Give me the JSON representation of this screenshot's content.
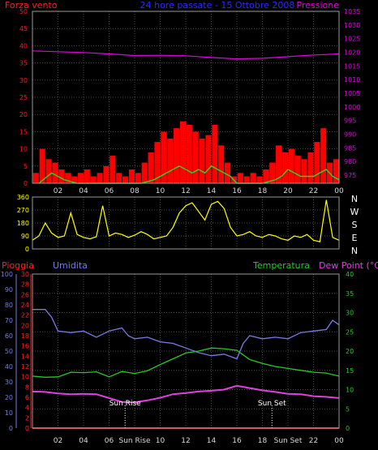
{
  "colors": {
    "background": "#000000",
    "grid": "#4a4a4a",
    "frame": "#9a9a9a",
    "axis_time": "#d8d8d8",
    "wind_speed": "#ff1a1a",
    "wind_gust": "#ff0000",
    "wind_mean_green": "#22dd22",
    "wind_mean_white": "#ffffff",
    "pressure": "#e000e0",
    "direction": "#ffff00",
    "rain": "#ff2020",
    "humidity": "#7a7ae8",
    "temperature": "#22cc22",
    "dewpoint": "#e040e0",
    "title": "#2a2aff",
    "compass": "#ffffff"
  },
  "chart_data": [
    {
      "type": "bar",
      "title": "24 hore passate - 15 Ottobre 2008",
      "left_label": "Forza vento",
      "right_label": "Pressione",
      "x_ticks": [
        "02",
        "04",
        "06",
        "08",
        "10",
        "12",
        "14",
        "16",
        "18",
        "20",
        "22",
        "00"
      ],
      "y_left": {
        "ticks": [
          0,
          5,
          10,
          15,
          20,
          25,
          30,
          35,
          40,
          45,
          50
        ],
        "range": [
          0,
          50
        ]
      },
      "y_right": {
        "ticks": [
          975,
          980,
          985,
          990,
          995,
          1000,
          1005,
          1010,
          1015,
          1020,
          1025,
          1030,
          1035
        ],
        "range": [
          972,
          1035
        ]
      },
      "series": [
        {
          "kind": "wind_gust",
          "x": [
            0.5,
            1.0,
            1.5,
            2.0,
            2.5,
            3.0,
            3.5,
            4.0,
            4.5,
            5.0,
            5.5,
            6.0,
            6.5,
            7.0,
            7.5,
            8.0,
            8.5,
            9.0,
            9.5,
            10.0,
            10.5,
            11.0,
            11.5,
            12.0,
            12.5,
            13.0,
            13.5,
            14.0,
            14.5,
            15.0,
            15.5,
            16.0,
            16.5,
            17.0,
            17.5,
            18.0,
            18.5,
            19.0,
            19.5,
            20.0,
            20.5,
            21.0,
            21.5,
            22.0,
            22.5,
            23.0,
            23.5,
            24.0
          ],
          "values": [
            3,
            10,
            7,
            6,
            4,
            3,
            2,
            3,
            4,
            2,
            3,
            5,
            8,
            3,
            2,
            4,
            3,
            6,
            9,
            12,
            15,
            13,
            16,
            18,
            17,
            15,
            13,
            14,
            17,
            11,
            6,
            2,
            3,
            2,
            3,
            2,
            4,
            6,
            11,
            9,
            10,
            8,
            7,
            9,
            12,
            16,
            6,
            7
          ]
        },
        {
          "kind": "wind_mean",
          "x": [
            0.5,
            1.5,
            2.5,
            3.5,
            4.5,
            5.5,
            6.5,
            7.5,
            8.5,
            9.5,
            10.5,
            11.0,
            11.5,
            12.0,
            12.5,
            13.0,
            13.5,
            14.0,
            14.5,
            15.0,
            15.5,
            16.0,
            17.0,
            18.0,
            19.0,
            19.5,
            20.0,
            20.5,
            21.0,
            21.5,
            22.0,
            22.5,
            23.0,
            23.5,
            24.0
          ],
          "values": [
            0,
            3,
            1,
            0,
            0,
            0,
            0,
            0,
            0,
            1,
            3,
            4,
            5,
            4,
            3,
            4,
            3,
            5,
            4,
            3,
            2,
            0,
            0,
            0,
            1,
            2,
            4,
            3,
            2,
            2,
            2,
            3,
            4,
            2,
            1
          ]
        },
        {
          "kind": "pressure",
          "x": [
            0,
            2,
            4,
            6,
            8,
            10,
            12,
            14,
            16,
            18,
            20,
            22,
            24
          ],
          "values": [
            1020.5,
            1020.2,
            1019.9,
            1019.4,
            1018.8,
            1018.9,
            1018.7,
            1018.1,
            1017.6,
            1017.8,
            1018.4,
            1019.0,
            1019.4
          ]
        }
      ]
    },
    {
      "type": "line",
      "title": "",
      "x_ticks": [
        "02",
        "04",
        "06",
        "08",
        "10",
        "12",
        "14",
        "16",
        "18",
        "20",
        "22",
        "00"
      ],
      "y_left": {
        "ticks": [
          0,
          90,
          180,
          270,
          360
        ],
        "range": [
          0,
          360
        ]
      },
      "compass_labels": [
        "N",
        "W",
        "S",
        "E",
        "N"
      ],
      "series": [
        {
          "kind": "direction",
          "x": [
            0,
            0.5,
            1,
            1.5,
            2,
            2.5,
            3,
            3.5,
            4,
            4.5,
            5,
            5.5,
            6,
            6.5,
            7,
            7.5,
            8,
            8.5,
            9,
            9.5,
            10,
            10.5,
            11,
            11.5,
            12,
            12.5,
            13,
            13.5,
            14,
            14.5,
            15,
            15.5,
            16,
            16.5,
            17,
            17.5,
            18,
            18.5,
            19,
            19.5,
            20,
            20.5,
            21,
            21.5,
            22,
            22.5,
            23,
            23.5,
            24
          ],
          "values": [
            60,
            90,
            180,
            110,
            80,
            90,
            250,
            100,
            80,
            70,
            85,
            300,
            90,
            110,
            100,
            80,
            95,
            120,
            100,
            70,
            80,
            90,
            150,
            250,
            300,
            320,
            260,
            200,
            310,
            330,
            280,
            150,
            90,
            100,
            120,
            90,
            80,
            100,
            90,
            70,
            60,
            90,
            80,
            100,
            60,
            50,
            340,
            80,
            60
          ]
        }
      ]
    },
    {
      "type": "line",
      "title": "",
      "left_labels": [
        "Pioggia",
        "Umidita"
      ],
      "right_labels": [
        "Temperatura",
        "Dew Point (°C)"
      ],
      "x_ticks": [
        "02",
        "04",
        "06",
        "Sun Rise",
        "10",
        "12",
        "14",
        "16",
        "18",
        "Sun Set",
        "22",
        "00"
      ],
      "y_humidity": {
        "ticks": [
          0,
          10,
          20,
          30,
          40,
          50,
          60,
          70,
          80,
          90,
          100
        ],
        "range": [
          0,
          100
        ]
      },
      "y_rain": {
        "ticks": [
          0,
          2,
          4,
          6,
          8,
          10,
          12,
          14,
          16,
          18,
          20,
          22,
          24,
          26,
          28,
          30
        ],
        "range": [
          0,
          30
        ]
      },
      "y_right": {
        "ticks": [
          0,
          5,
          10,
          15,
          20,
          25,
          30,
          35,
          40
        ],
        "range": [
          0,
          40
        ]
      },
      "annotations": [
        {
          "text": "Sun Rise",
          "x": 7.25
        },
        {
          "text": "Sun Set",
          "x": 18.75
        }
      ],
      "series": [
        {
          "kind": "rain",
          "x": [
            0,
            24
          ],
          "values": [
            0,
            0
          ]
        },
        {
          "kind": "humidity",
          "x": [
            0,
            1,
            1.5,
            2,
            3,
            4,
            5,
            6,
            7,
            7.5,
            8,
            9,
            10,
            11,
            12,
            13,
            14,
            15,
            16,
            16.5,
            17,
            18,
            19,
            20,
            21,
            22,
            23,
            23.5,
            24
          ],
          "values": [
            77,
            77,
            72,
            63,
            62,
            63,
            59,
            63,
            65,
            60,
            58,
            59,
            56,
            55,
            52,
            49,
            47,
            48,
            45,
            55,
            60,
            58,
            59,
            58,
            62,
            63,
            64,
            70,
            67
          ]
        },
        {
          "kind": "temperature",
          "x": [
            0,
            1,
            2,
            3,
            4,
            5,
            6,
            7,
            8,
            9,
            10,
            11,
            12,
            13,
            14,
            15,
            16,
            17,
            18,
            19,
            20,
            21,
            22,
            23,
            24
          ],
          "values": [
            13.5,
            13.2,
            13.3,
            14.5,
            14.4,
            14.6,
            13.3,
            14.7,
            14.2,
            14.9,
            16.5,
            18,
            19.5,
            20,
            20.8,
            20.6,
            20.2,
            17.8,
            16.8,
            16,
            15.5,
            15,
            14.5,
            14.3,
            13.5
          ]
        },
        {
          "kind": "dewpoint",
          "x": [
            0,
            1,
            2,
            3,
            4,
            5,
            6,
            7,
            8,
            9,
            10,
            11,
            12,
            13,
            14,
            15,
            16,
            17,
            18,
            19,
            20,
            21,
            22,
            23,
            24
          ],
          "values": [
            9.5,
            9.4,
            9,
            8.8,
            8.9,
            8.8,
            7.8,
            6.8,
            6.7,
            7.2,
            7.9,
            8.8,
            9.1,
            9.5,
            9.7,
            10,
            11,
            10.4,
            9.8,
            9.4,
            8.9,
            8.8,
            8.3,
            8.1,
            7.8
          ]
        }
      ]
    }
  ]
}
